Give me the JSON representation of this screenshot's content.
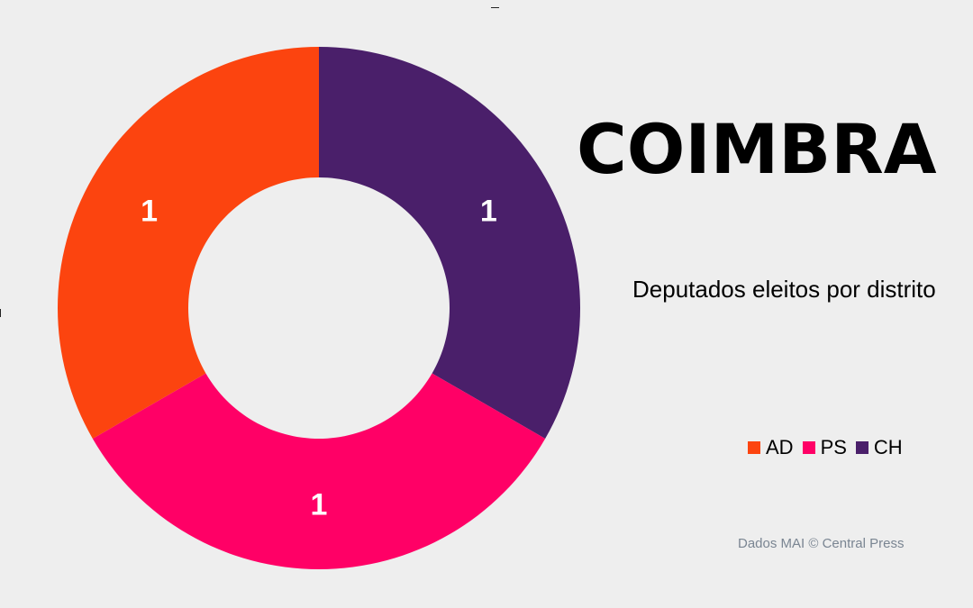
{
  "chart_data": {
    "type": "pie",
    "title": "COIMBRA",
    "subtitle": "Deputados eleitos por distrito",
    "labels": [
      "AD",
      "PS",
      "CH"
    ],
    "values": [
      1,
      1,
      1
    ],
    "data_labels": [
      "1",
      "1",
      "1"
    ],
    "colors": [
      "#fc440f",
      "#ff0066",
      "#4a1f6a"
    ],
    "donut": true,
    "legend": "bottom-right"
  },
  "source": "Dados MAI  © Central Press"
}
